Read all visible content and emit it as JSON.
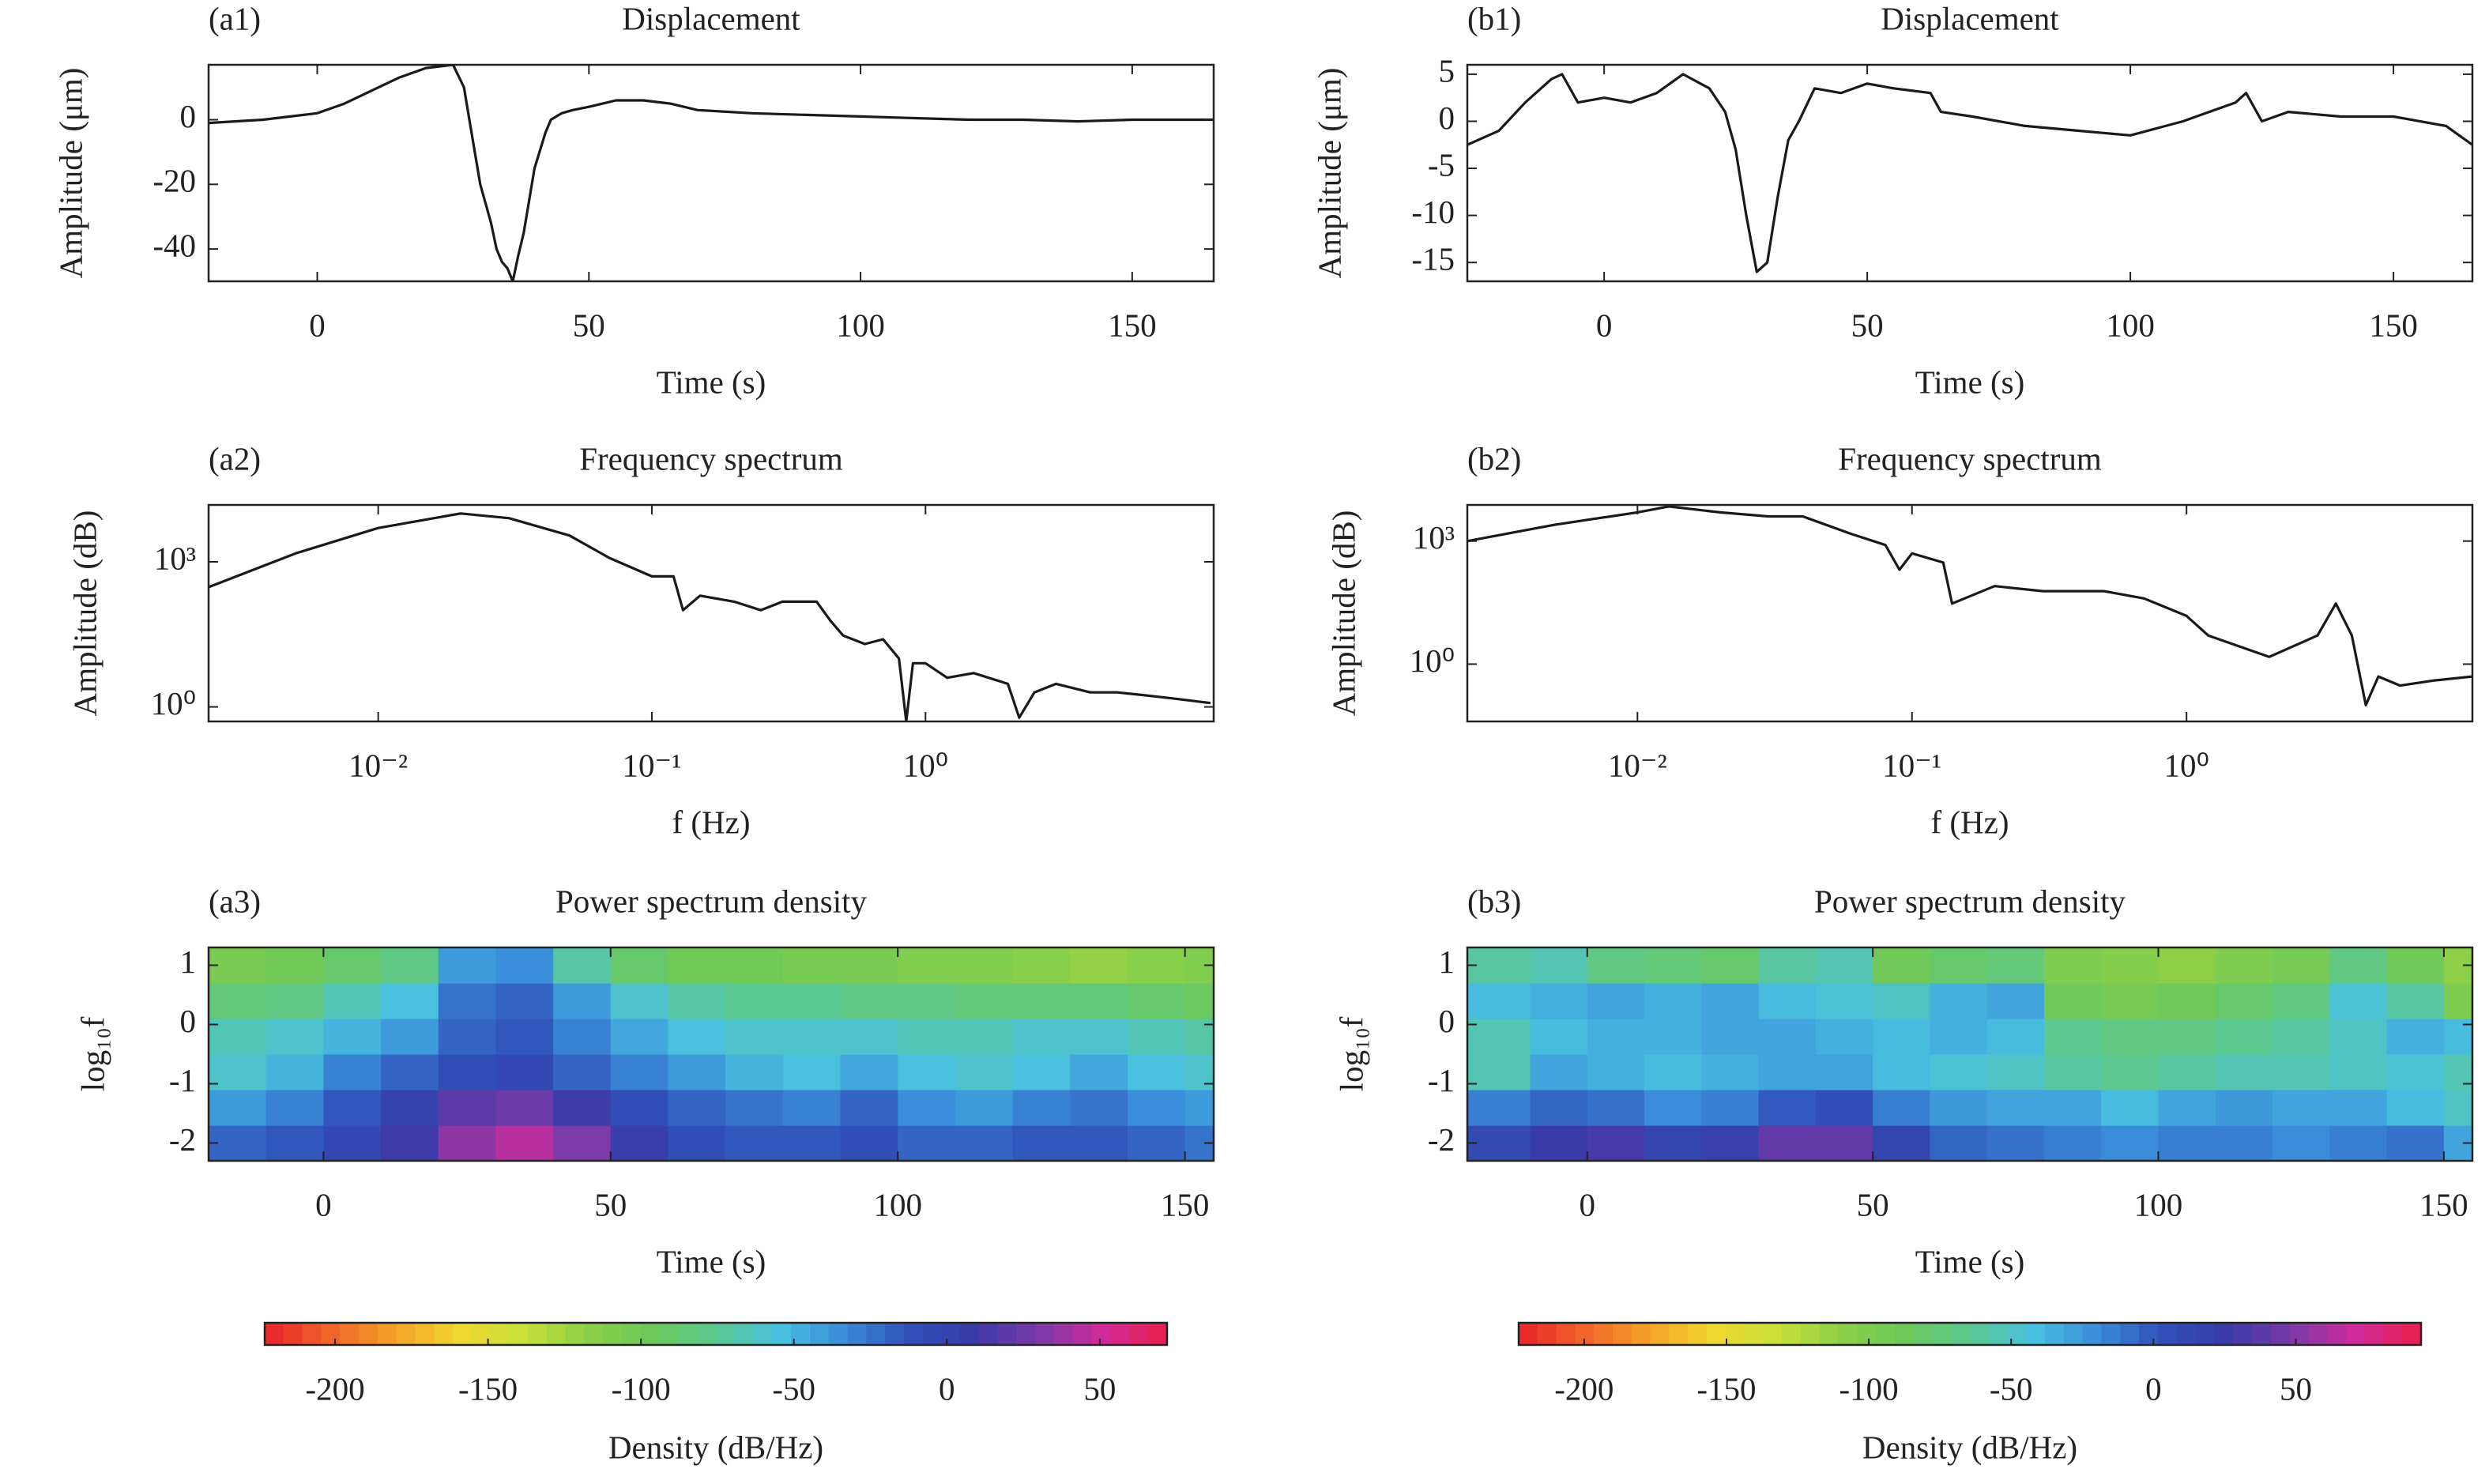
{
  "chart_data": [
    {
      "type": "line",
      "panel_label": "(a1)",
      "title": "Displacement",
      "xlabel": "Time (s)",
      "ylabel": "Amplitude (μm)",
      "color": "#1a1a1a",
      "x": [
        -20,
        -10,
        0,
        5,
        10,
        15,
        20,
        25,
        27,
        28,
        30,
        32,
        33,
        34,
        35,
        36,
        37,
        38,
        40,
        42,
        43,
        45,
        47,
        50,
        55,
        60,
        65,
        70,
        80,
        90,
        100,
        110,
        120,
        130,
        140,
        150,
        165
      ],
      "values": [
        -1,
        0,
        2,
        5,
        9,
        13,
        16,
        17,
        10,
        0,
        -20,
        -32,
        -40,
        -44,
        -46,
        -50,
        -42,
        -35,
        -15,
        -4,
        0,
        2,
        3,
        4,
        6,
        6,
        5,
        3,
        2,
        1.5,
        1,
        0.5,
        0,
        0,
        -0.5,
        0,
        0
      ],
      "xlim": [
        -20,
        165
      ],
      "ylim": [
        -50,
        17
      ],
      "xticks": [
        0,
        50,
        100,
        150
      ],
      "yticks": [
        0,
        -20,
        -40
      ]
    },
    {
      "type": "line",
      "panel_label": "(a2)",
      "title": "Frequency spectrum",
      "xlabel": "f (Hz)",
      "ylabel": "Amplitude (dB)",
      "color": "#1a1a1a",
      "xscale": "log",
      "yscale": "log",
      "x": [
        0.0024,
        0.005,
        0.01,
        0.02,
        0.03,
        0.05,
        0.07,
        0.1,
        0.12,
        0.13,
        0.15,
        0.2,
        0.25,
        0.3,
        0.4,
        0.45,
        0.5,
        0.6,
        0.7,
        0.8,
        0.85,
        0.9,
        1,
        1.2,
        1.5,
        2,
        2.2,
        2.5,
        3,
        4,
        5,
        6,
        8,
        11
      ],
      "values": [
        300,
        1500,
        5000,
        10000,
        8000,
        3500,
        1200,
        500,
        500,
        100,
        200,
        150,
        100,
        150,
        150,
        60,
        30,
        20,
        25,
        10,
        0.5,
        8,
        8,
        4,
        5,
        3,
        0.6,
        2,
        3,
        2,
        2,
        1.8,
        1.5,
        1.2
      ],
      "xlim": [
        0.0024,
        11.3
      ],
      "ylim": [
        0.5,
        15000
      ],
      "xticks": [
        {
          "value": 0.01,
          "label": "10⁻²"
        },
        {
          "value": 0.1,
          "label": "10⁻¹"
        },
        {
          "value": 1,
          "label": "10⁰"
        }
      ],
      "yticks": [
        {
          "value": 1000,
          "label": "10³"
        },
        {
          "value": 1,
          "label": "10⁰"
        }
      ]
    },
    {
      "type": "heatmap",
      "panel_label": "(a3)",
      "title": "Power spectrum density",
      "xlabel": "Time (s)",
      "ylabel": "log₁₀f",
      "xlim": [
        -20,
        155
      ],
      "ylim": [
        -2.3,
        1.3
      ],
      "xticks": [
        0,
        50,
        100,
        150
      ],
      "yticks": [
        1,
        0,
        -1,
        -2
      ],
      "xbins": [
        -20,
        -10,
        0,
        10,
        20,
        30,
        40,
        50,
        60,
        70,
        80,
        90,
        100,
        110,
        120,
        130,
        140,
        150,
        155
      ],
      "ybins": [
        -2.3,
        -1.7,
        -1.1,
        -0.5,
        0.1,
        0.7,
        1.3
      ],
      "z": [
        [
          -20,
          -15,
          -5,
          10,
          35,
          45,
          30,
          5,
          -10,
          -15,
          -15,
          -10,
          -20,
          -20,
          -15,
          -15,
          -20,
          -25
        ],
        [
          -40,
          -30,
          -15,
          0,
          20,
          25,
          10,
          -10,
          -20,
          -25,
          -30,
          -20,
          -35,
          -40,
          -30,
          -25,
          -35,
          -40
        ],
        [
          -60,
          -50,
          -30,
          -20,
          -10,
          -5,
          -20,
          -30,
          -40,
          -50,
          -55,
          -45,
          -55,
          -60,
          -55,
          -45,
          -55,
          -60
        ],
        [
          -65,
          -60,
          -50,
          -40,
          -20,
          -15,
          -30,
          -45,
          -55,
          -60,
          -60,
          -60,
          -65,
          -65,
          -60,
          -60,
          -65,
          -70
        ],
        [
          -85,
          -80,
          -65,
          -55,
          -25,
          -20,
          -40,
          -60,
          -70,
          -75,
          -75,
          -80,
          -80,
          -85,
          -85,
          -85,
          -90,
          -95
        ],
        [
          -105,
          -100,
          -90,
          -80,
          -40,
          -35,
          -70,
          -90,
          -100,
          -100,
          -105,
          -105,
          -110,
          -110,
          -115,
          -120,
          -115,
          -110
        ]
      ],
      "colorbar": {
        "label": "Density (dB/Hz)",
        "lim": [
          -223,
          72
        ],
        "ticks": [
          -200,
          -150,
          -100,
          -50,
          0,
          50
        ],
        "colors": [
          "#e8232a",
          "#f0642a",
          "#f5a028",
          "#f0d830",
          "#c8e03a",
          "#8cd048",
          "#6cc85a",
          "#5cc890",
          "#48c0e0",
          "#3a8ad8",
          "#3050b8",
          "#3a3aa8",
          "#7a3aa8",
          "#d02a9a",
          "#e8204a"
        ]
      }
    },
    {
      "type": "line",
      "panel_label": "(b1)",
      "title": "Displacement",
      "xlabel": "Time (s)",
      "ylabel": "Amplitude (μm)",
      "color": "#1a1a1a",
      "x": [
        -26,
        -20,
        -15,
        -10,
        -8,
        -5,
        0,
        5,
        10,
        15,
        20,
        23,
        25,
        27,
        29,
        31,
        33,
        35,
        37,
        40,
        45,
        50,
        55,
        62,
        64,
        70,
        80,
        90,
        100,
        110,
        120,
        122,
        125,
        130,
        140,
        150,
        160,
        165
      ],
      "values": [
        -2.5,
        -1,
        2,
        4.5,
        5,
        2,
        2.5,
        2,
        3,
        5,
        3.5,
        1,
        -3,
        -10,
        -16,
        -15,
        -8,
        -2,
        0,
        3.5,
        3,
        4,
        3.5,
        3,
        1,
        0.5,
        -0.5,
        -1,
        -1.5,
        0,
        2,
        3,
        0,
        1,
        0.5,
        0.5,
        -0.5,
        -2.5
      ],
      "xlim": [
        -26,
        165
      ],
      "ylim": [
        -17,
        6
      ],
      "xticks": [
        0,
        50,
        100,
        150
      ],
      "yticks": [
        5,
        0,
        -5,
        -10,
        -15
      ]
    },
    {
      "type": "line",
      "panel_label": "(b2)",
      "title": "Frequency spectrum",
      "xlabel": "f (Hz)",
      "ylabel": "Amplitude (dB)",
      "color": "#1a1a1a",
      "xscale": "log",
      "yscale": "log",
      "x": [
        0.0024,
        0.005,
        0.01,
        0.013,
        0.02,
        0.03,
        0.04,
        0.06,
        0.08,
        0.09,
        0.1,
        0.13,
        0.14,
        0.2,
        0.3,
        0.5,
        0.7,
        1,
        1.2,
        2,
        3,
        3.5,
        4,
        4.5,
        5,
        6,
        8,
        11
      ],
      "values": [
        1000,
        2500,
        5000,
        7000,
        5000,
        4000,
        4000,
        1500,
        800,
        200,
        500,
        300,
        30,
        80,
        60,
        60,
        40,
        15,
        5,
        1.5,
        5,
        30,
        5,
        0.1,
        0.5,
        0.3,
        0.4,
        0.5
      ],
      "xlim": [
        0.0024,
        11
      ],
      "ylim": [
        0.04,
        7600
      ],
      "xticks": [
        {
          "value": 0.01,
          "label": "10⁻²"
        },
        {
          "value": 0.1,
          "label": "10⁻¹"
        },
        {
          "value": 1,
          "label": "10⁰"
        }
      ],
      "yticks": [
        {
          "value": 1000,
          "label": "10³"
        },
        {
          "value": 1,
          "label": "10⁰"
        }
      ]
    },
    {
      "type": "heatmap",
      "panel_label": "(b3)",
      "title": "Power spectrum density",
      "xlabel": "Time (s)",
      "ylabel": "log₁₀f",
      "xlim": [
        -21,
        155
      ],
      "ylim": [
        -2.3,
        1.3
      ],
      "xticks": [
        0,
        50,
        100,
        150
      ],
      "yticks": [
        1,
        0,
        -1,
        -2
      ],
      "xbins": [
        -21,
        -10,
        0,
        10,
        20,
        30,
        40,
        50,
        60,
        70,
        80,
        90,
        100,
        110,
        120,
        130,
        140,
        150,
        155
      ],
      "ybins": [
        -2.3,
        -1.7,
        -1.1,
        -0.5,
        0.1,
        0.7,
        1.3
      ],
      "z": [
        [
          10,
          25,
          30,
          15,
          20,
          40,
          40,
          15,
          -5,
          -10,
          -15,
          -20,
          -15,
          -15,
          -20,
          -15,
          -10,
          -30
        ],
        [
          -15,
          -5,
          -10,
          -20,
          -15,
          0,
          5,
          -15,
          -25,
          -30,
          -30,
          -40,
          -30,
          -25,
          -30,
          -30,
          -40,
          -50
        ],
        [
          -55,
          -30,
          -35,
          -40,
          -35,
          -30,
          -30,
          -40,
          -45,
          -50,
          -60,
          -65,
          -60,
          -55,
          -55,
          -50,
          -45,
          -55
        ],
        [
          -55,
          -40,
          -35,
          -35,
          -30,
          -30,
          -35,
          -40,
          -35,
          -40,
          -65,
          -70,
          -70,
          -65,
          -60,
          -50,
          -35,
          -40
        ],
        [
          -40,
          -35,
          -30,
          -35,
          -30,
          -40,
          -45,
          -50,
          -35,
          -30,
          -90,
          -95,
          -90,
          -80,
          -70,
          -45,
          -60,
          -100
        ],
        [
          -60,
          -55,
          -70,
          -75,
          -80,
          -60,
          -55,
          -90,
          -80,
          -75,
          -100,
          -105,
          -110,
          -100,
          -95,
          -70,
          -90,
          -110
        ]
      ],
      "colorbar": {
        "label": "Density (dB/Hz)",
        "lim": [
          -223,
          94
        ],
        "ticks": [
          -200,
          -150,
          -100,
          -50,
          0,
          50
        ],
        "colors": [
          "#e8232a",
          "#f0642a",
          "#f5a028",
          "#f0d830",
          "#c8e03a",
          "#8cd048",
          "#6cc85a",
          "#5cc890",
          "#48c0e0",
          "#3a8ad8",
          "#3050b8",
          "#3a3aa8",
          "#7a3aa8",
          "#d02a9a",
          "#e8204a"
        ]
      }
    }
  ]
}
